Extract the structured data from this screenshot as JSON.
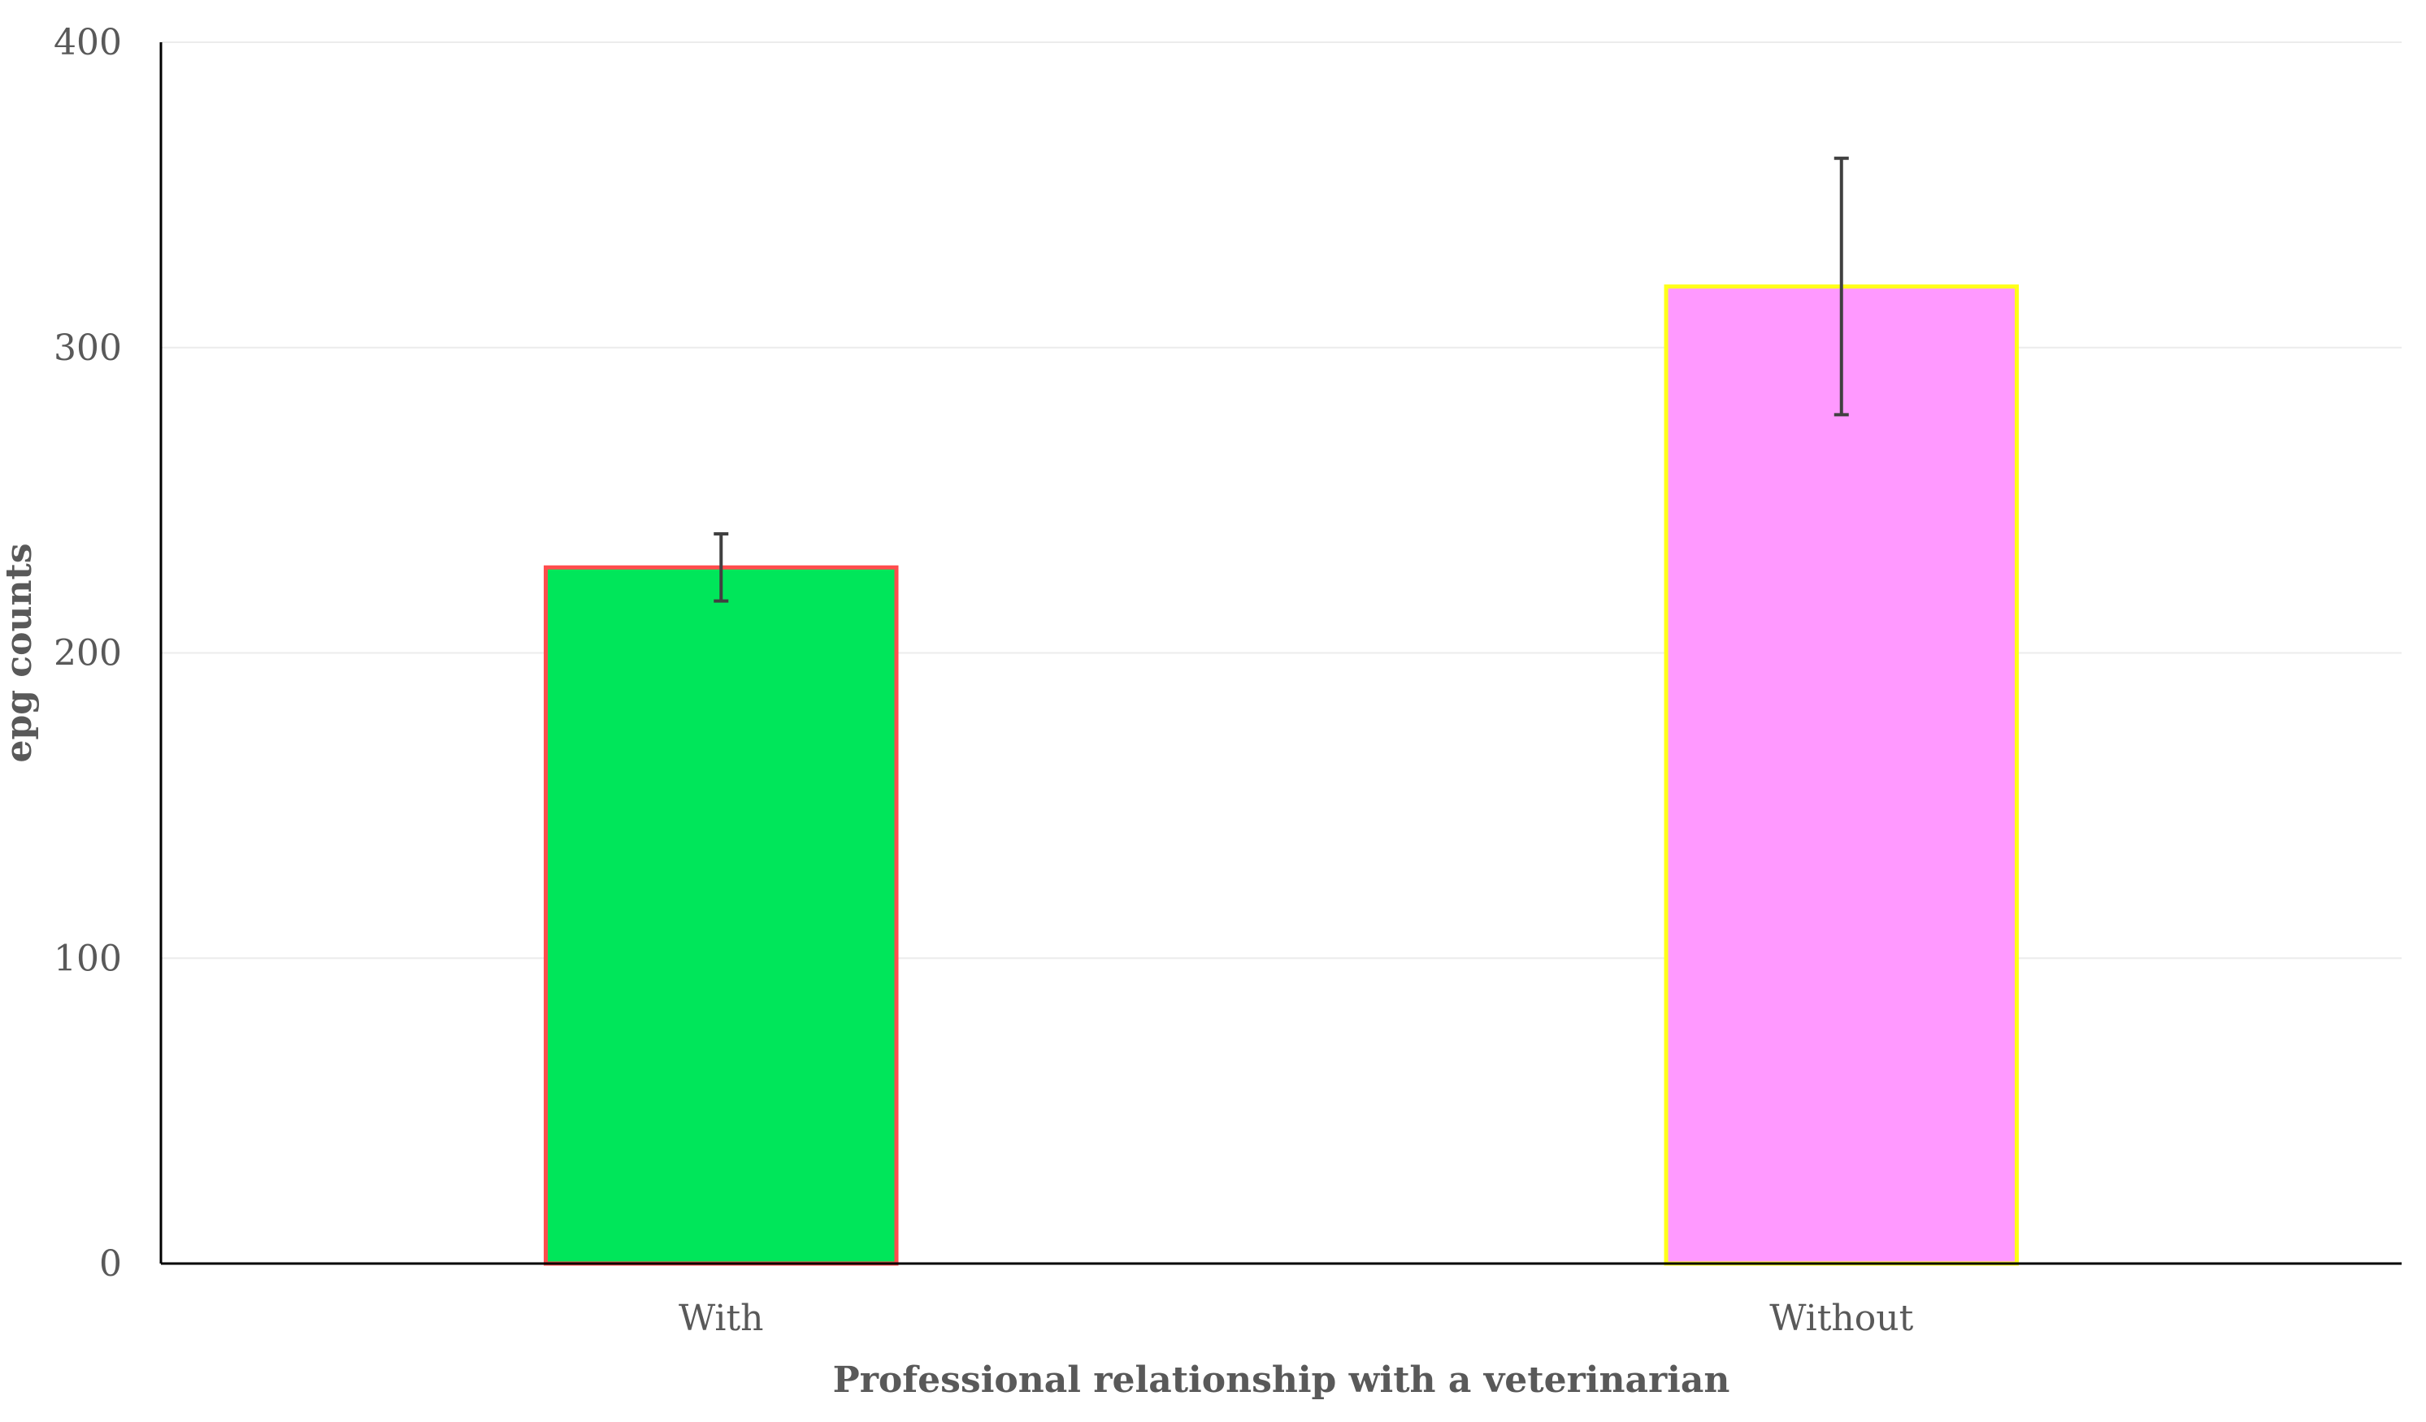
{
  "chart_data": {
    "type": "bar",
    "title": "",
    "xlabel": "Professional relationship with a veterinarian",
    "ylabel": "epg counts",
    "categories": [
      "With",
      "Without"
    ],
    "values": [
      228,
      320
    ],
    "error_low": [
      217,
      278
    ],
    "error_high": [
      239,
      362
    ],
    "ylim": [
      0,
      400
    ],
    "yticks": [
      0,
      100,
      200,
      300,
      400
    ],
    "grid": true,
    "legend": "none",
    "bar_fill_colors": [
      "#00e65a",
      "#ff99ff"
    ],
    "bar_border_colors": [
      "#ff4d4d",
      "#ffff1a"
    ],
    "error_bar_color": "#404040",
    "axis_color": "#000000",
    "gridline_color": "#ececec",
    "text_color": "#595959"
  }
}
